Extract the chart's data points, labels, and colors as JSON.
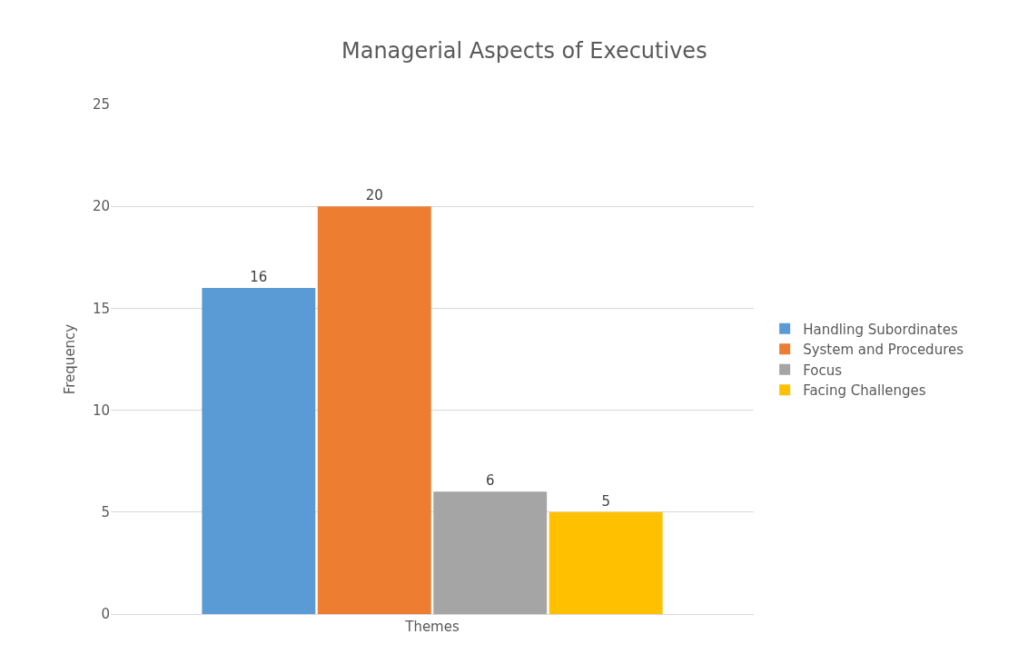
{
  "chart_data": {
    "type": "bar",
    "title": "Managerial Aspects of Executives",
    "ylabel": "Frequency",
    "categories": [
      "Themes"
    ],
    "series": [
      {
        "name": "Handling Subordinates",
        "color": "#5b9bd5",
        "values": [
          16
        ]
      },
      {
        "name": "System and Procedures",
        "color": "#ed7d31",
        "values": [
          20
        ]
      },
      {
        "name": "Focus",
        "color": "#a5a5a5",
        "values": [
          6
        ]
      },
      {
        "name": "Facing Challenges",
        "color": "#ffc000",
        "values": [
          5
        ]
      }
    ],
    "ylim": [
      0,
      25
    ],
    "yticks": [
      0,
      5,
      10,
      15,
      20,
      25
    ],
    "grid": "y",
    "legend": "right",
    "data_labels": true
  }
}
